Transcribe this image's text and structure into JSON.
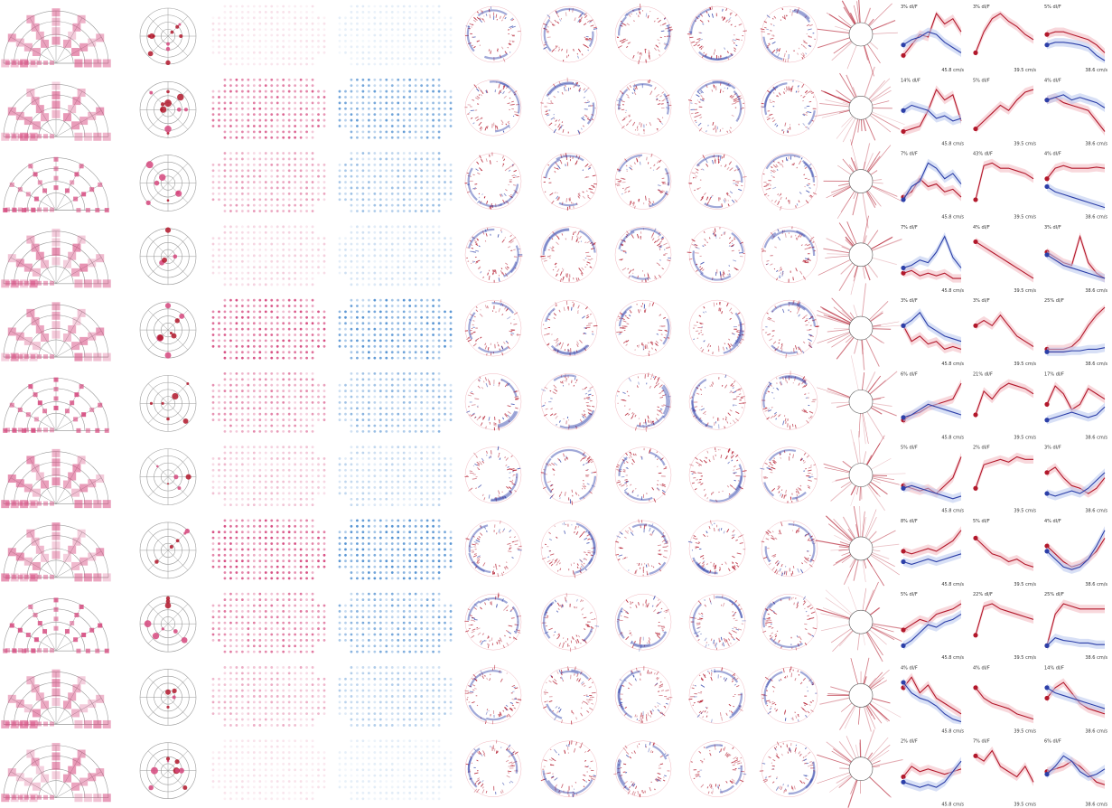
{
  "figure": {
    "rows": 11,
    "panel_columns": [
      "fan-of-grids",
      "polar-target",
      "pink-dot-array",
      "blue-dot-array",
      "circular-raster-1",
      "circular-raster-2",
      "circular-raster-3",
      "circular-raster-4",
      "circular-raster-5",
      "radial-burst",
      "tuning-plot-1",
      "tuning-plot-2",
      "tuning-plot-3"
    ],
    "colors": {
      "pink": "#d6487e",
      "red": "#b2182b",
      "blue": "#2c3fa8",
      "light_blue": "#4f8fd1",
      "shade_red": "#f2b8c0",
      "shade_blue": "#b8c6ee",
      "grid": "#9a9a9a"
    }
  },
  "chart_data": {
    "type": "line",
    "description_units": "tuning curves: x = stimulus speed index (1-8), y = normalized dF/F",
    "axis_speed_labels": [
      "45.8 cm/s",
      "39.5 cm/s",
      "38.6 cm/s"
    ],
    "rows": [
      {
        "labels": [
          "3% dI/F",
          "3% dI/F",
          "5% dI/F"
        ],
        "series": [
          {
            "red": [
              0.15,
              0.35,
              0.55,
              0.5,
              0.95,
              0.75,
              0.85,
              0.6
            ],
            "blue": [
              0.35,
              0.45,
              0.5,
              0.6,
              0.55,
              0.4,
              0.3,
              0.2
            ]
          },
          {
            "red": [
              0.2,
              0.6,
              0.85,
              0.95,
              0.8,
              0.7,
              0.55,
              0.45
            ],
            "blue": null
          },
          {
            "red": [
              0.55,
              0.6,
              0.6,
              0.55,
              0.5,
              0.45,
              0.35,
              0.2
            ],
            "blue": [
              0.35,
              0.4,
              0.4,
              0.38,
              0.35,
              0.3,
              0.15,
              0.05
            ]
          }
        ]
      },
      {
        "labels": [
          "14% dI/F",
          "5% dI/F",
          "4% dI/F"
        ],
        "series": [
          {
            "red": [
              0.1,
              0.15,
              0.2,
              0.5,
              0.9,
              0.7,
              0.8,
              0.3
            ],
            "blue": [
              0.5,
              0.6,
              0.55,
              0.5,
              0.35,
              0.4,
              0.3,
              0.35
            ]
          },
          {
            "red": [
              0.15,
              0.3,
              0.45,
              0.6,
              0.5,
              0.7,
              0.85,
              0.9
            ],
            "blue": null
          },
          {
            "red": [
              0.7,
              0.75,
              0.65,
              0.6,
              0.55,
              0.5,
              0.3,
              0.1
            ],
            "blue": [
              0.7,
              0.75,
              0.8,
              0.7,
              0.75,
              0.7,
              0.65,
              0.55
            ]
          }
        ]
      },
      {
        "labels": [
          "7% dI/F",
          "43% dI/F",
          "4% dI/F"
        ],
        "series": [
          {
            "red": [
              0.25,
              0.35,
              0.6,
              0.45,
              0.5,
              0.35,
              0.4,
              0.25
            ],
            "blue": [
              0.2,
              0.45,
              0.55,
              0.9,
              0.8,
              0.6,
              0.7,
              0.5
            ]
          },
          {
            "red": [
              0.2,
              0.85,
              0.9,
              0.8,
              0.8,
              0.75,
              0.7,
              0.6
            ],
            "blue": null
          },
          {
            "red": [
              0.6,
              0.8,
              0.85,
              0.8,
              0.8,
              0.8,
              0.82,
              0.8
            ],
            "blue": [
              0.45,
              0.35,
              0.3,
              0.25,
              0.2,
              0.15,
              0.1,
              0.05
            ]
          }
        ]
      },
      {
        "labels": [
          "7% dI/F",
          "4% dI/F",
          "3% dI/F"
        ],
        "series": [
          {
            "red": [
              0.2,
              0.25,
              0.15,
              0.2,
              0.15,
              0.2,
              0.1,
              0.1
            ],
            "blue": [
              0.3,
              0.35,
              0.45,
              0.4,
              0.6,
              0.9,
              0.5,
              0.3
            ]
          },
          {
            "red": [
              0.8,
              0.7,
              0.6,
              0.5,
              0.4,
              0.3,
              0.2,
              0.1
            ],
            "blue": null
          },
          {
            "red": [
              0.6,
              0.5,
              0.4,
              0.35,
              0.9,
              0.4,
              0.2,
              0.1
            ],
            "blue": [
              0.55,
              0.45,
              0.35,
              0.3,
              0.25,
              0.2,
              0.15,
              0.1
            ]
          }
        ]
      },
      {
        "labels": [
          "3% dI/F",
          "3% dI/F",
          "25% dI/F"
        ],
        "series": [
          {
            "red": [
              0.6,
              0.3,
              0.4,
              0.25,
              0.3,
              0.15,
              0.2,
              0.15
            ],
            "blue": [
              0.6,
              0.7,
              0.85,
              0.6,
              0.5,
              0.4,
              0.35,
              0.3
            ]
          },
          {
            "red": [
              0.6,
              0.7,
              0.6,
              0.8,
              0.6,
              0.4,
              0.3,
              0.2
            ],
            "blue": null
          },
          {
            "red": [
              0.15,
              0.15,
              0.15,
              0.2,
              0.35,
              0.6,
              0.8,
              0.95
            ],
            "blue": [
              0.1,
              0.1,
              0.1,
              0.12,
              0.12,
              0.15,
              0.15,
              0.18
            ]
          }
        ]
      },
      {
        "labels": [
          "6% dI/F",
          "21% dI/F",
          "17% dI/F"
        ],
        "series": [
          {
            "red": [
              0.2,
              0.3,
              0.35,
              0.45,
              0.5,
              0.55,
              0.6,
              0.9
            ],
            "blue": [
              0.25,
              0.3,
              0.4,
              0.5,
              0.45,
              0.4,
              0.35,
              0.3
            ]
          },
          {
            "red": [
              0.3,
              0.75,
              0.6,
              0.8,
              0.9,
              0.85,
              0.8,
              0.7
            ],
            "blue": null
          },
          {
            "red": [
              0.5,
              0.85,
              0.7,
              0.4,
              0.5,
              0.8,
              0.7,
              0.6
            ],
            "blue": [
              0.2,
              0.25,
              0.3,
              0.35,
              0.3,
              0.25,
              0.3,
              0.45
            ]
          }
        ]
      },
      {
        "labels": [
          "5% dI/F",
          "2% dI/F",
          "3% dI/F"
        ],
        "series": [
          {
            "red": [
              0.35,
              0.3,
              0.25,
              0.3,
              0.2,
              0.35,
              0.5,
              0.9
            ],
            "blue": [
              0.3,
              0.35,
              0.3,
              0.25,
              0.2,
              0.15,
              0.1,
              0.15
            ]
          },
          {
            "red": [
              0.3,
              0.75,
              0.8,
              0.85,
              0.8,
              0.9,
              0.85,
              0.85
            ],
            "blue": null
          },
          {
            "red": [
              0.6,
              0.7,
              0.5,
              0.35,
              0.3,
              0.2,
              0.3,
              0.5
            ],
            "blue": [
              0.2,
              0.15,
              0.2,
              0.25,
              0.2,
              0.3,
              0.45,
              0.6
            ]
          }
        ]
      },
      {
        "labels": [
          "8% dI/F",
          "5% dI/F",
          "4% dI/F"
        ],
        "series": [
          {
            "red": [
              0.5,
              0.45,
              0.5,
              0.55,
              0.5,
              0.6,
              0.7,
              0.9
            ],
            "blue": [
              0.3,
              0.25,
              0.3,
              0.35,
              0.3,
              0.35,
              0.4,
              0.45
            ]
          },
          {
            "red": [
              0.75,
              0.6,
              0.45,
              0.4,
              0.3,
              0.35,
              0.25,
              0.2
            ],
            "blue": null
          },
          {
            "red": [
              0.6,
              0.45,
              0.3,
              0.2,
              0.25,
              0.35,
              0.5,
              0.75
            ],
            "blue": [
              0.5,
              0.35,
              0.2,
              0.15,
              0.2,
              0.35,
              0.6,
              0.9
            ]
          }
        ]
      },
      {
        "labels": [
          "5% dI/F",
          "22% dI/F",
          "25% dI/F"
        ],
        "series": [
          {
            "red": [
              0.4,
              0.5,
              0.6,
              0.55,
              0.7,
              0.75,
              0.8,
              0.9
            ],
            "blue": [
              0.1,
              0.2,
              0.35,
              0.5,
              0.45,
              0.55,
              0.6,
              0.7
            ]
          },
          {
            "red": [
              0.3,
              0.85,
              0.9,
              0.8,
              0.75,
              0.7,
              0.65,
              0.6
            ],
            "blue": null
          },
          {
            "red": [
              0.1,
              0.7,
              0.9,
              0.85,
              0.8,
              0.8,
              0.8,
              0.8
            ],
            "blue": [
              0.1,
              0.25,
              0.2,
              0.18,
              0.15,
              0.15,
              0.12,
              0.12
            ]
          }
        ]
      },
      {
        "labels": [
          "4% dI/F",
          "4% dI/F",
          "14% dI/F"
        ],
        "series": [
          {
            "red": [
              0.7,
              0.9,
              0.6,
              0.75,
              0.5,
              0.4,
              0.3,
              0.2
            ],
            "blue": [
              0.8,
              0.6,
              0.5,
              0.45,
              0.35,
              0.2,
              0.1,
              0.05
            ]
          },
          {
            "red": [
              0.7,
              0.5,
              0.4,
              0.35,
              0.3,
              0.2,
              0.15,
              0.1
            ],
            "blue": null
          },
          {
            "red": [
              0.5,
              0.7,
              0.8,
              0.6,
              0.4,
              0.3,
              0.25,
              0.2
            ],
            "blue": [
              0.7,
              0.6,
              0.55,
              0.5,
              0.45,
              0.4,
              0.35,
              0.3
            ]
          }
        ]
      },
      {
        "labels": [
          "2% dI/F",
          "7% dI/F",
          "6% dI/F"
        ],
        "series": [
          {
            "red": [
              0.4,
              0.6,
              0.5,
              0.55,
              0.5,
              0.45,
              0.5,
              0.55
            ],
            "blue": [
              0.3,
              0.25,
              0.2,
              0.25,
              0.2,
              0.3,
              0.5,
              0.7
            ]
          },
          {
            "red": [
              0.8,
              0.7,
              0.9,
              0.6,
              0.5,
              0.4,
              0.6,
              0.3
            ],
            "blue": null
          },
          {
            "red": [
              0.5,
              0.55,
              0.6,
              0.7,
              0.6,
              0.45,
              0.3,
              0.25
            ],
            "blue": [
              0.45,
              0.6,
              0.8,
              0.7,
              0.5,
              0.4,
              0.45,
              0.55
            ]
          }
        ]
      }
    ]
  }
}
